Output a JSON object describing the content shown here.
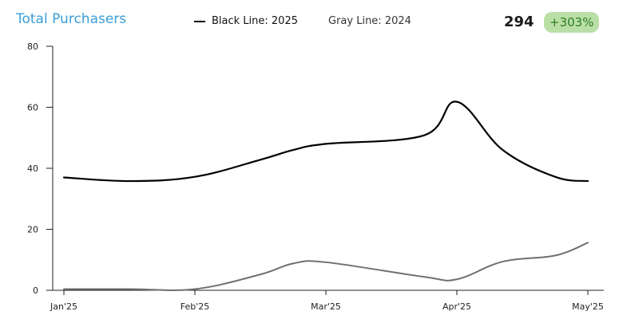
{
  "header": {
    "title": "Total Purchasers",
    "legend_black": "Black Line: 2025",
    "legend_gray": "Gray Line: 2024",
    "total": "294",
    "change": "+303%"
  },
  "colors": {
    "title": "#3a9fd6",
    "series_2025": "#000000",
    "series_2024": "#707070",
    "badge_bg": "#b9dfa6",
    "badge_text": "#2f7d22"
  },
  "chart_data": {
    "type": "line",
    "title": "Total Purchasers",
    "xlabel": "",
    "ylabel": "",
    "ylim": [
      0,
      80
    ],
    "y_ticks": [
      0,
      20,
      40,
      60,
      80
    ],
    "x_tick_labels": [
      "Jan'25",
      "Feb'25",
      "Mar'25",
      "Apr'25",
      "May'25"
    ],
    "x": [
      0,
      0.5,
      1,
      1.5,
      1.75,
      2,
      2.75,
      3,
      3.35,
      3.75,
      4
    ],
    "x_unit": "months from Jan'25",
    "grid": false,
    "legend": "top",
    "series": [
      {
        "name": "Black Line: 2025",
        "values": [
          37,
          35.8,
          37.2,
          42.8,
          46,
          48,
          50.8,
          61.8,
          46,
          37.2,
          35.8
        ]
      },
      {
        "name": "Gray Line: 2024",
        "values": [
          0.4,
          0.4,
          0.4,
          5.2,
          8.8,
          9.2,
          4.4,
          3.6,
          9.4,
          11.4,
          15.6
        ]
      }
    ]
  }
}
